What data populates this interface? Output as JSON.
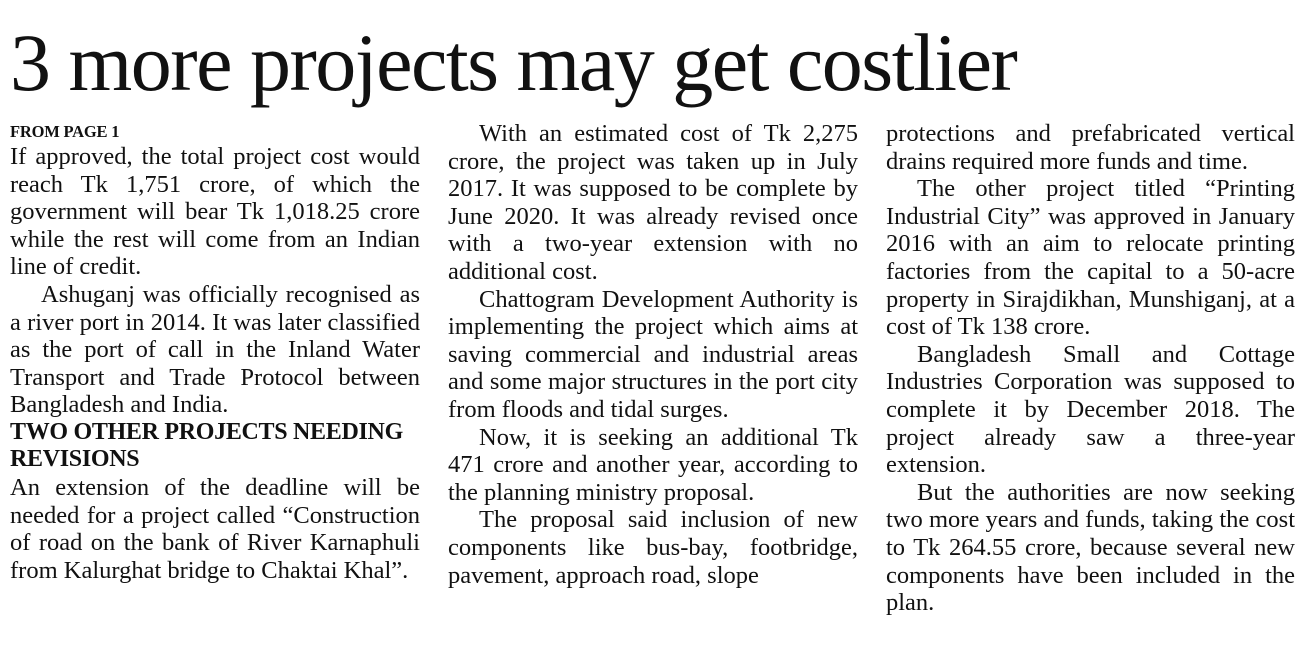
{
  "article": {
    "headline": "3 more projects may get costlier",
    "kicker": "FROM PAGE 1",
    "col1": {
      "p1": "If approved, the total project cost would reach Tk 1,751 crore, of which the government will bear Tk 1,018.25 crore while the rest will come from an Indian line of credit.",
      "p2": "Ashuganj was officially recognised as a river port in 2014. It was later classified as the port of call in the Inland Water Transport and Trade Protocol between Bangladesh and India.",
      "subhead": "TWO OTHER PROJECTS NEEDING REVISIONS",
      "p3": "An extension of the deadline will be needed for a project called “Construction of road on the bank of River Karnaphuli from Kalurghat bridge to Chaktai Khal”."
    },
    "col2": {
      "p1": "With an estimated cost of Tk 2,275 crore, the project was taken up in July 2017. It was supposed to be complete by June 2020. It was already revised once with a two-year extension with no additional cost.",
      "p2": "Chattogram Development Authority is implementing the project which aims at saving commercial and industrial areas and some major structures in the port city from floods and tidal surges.",
      "p3": "Now, it is seeking an additional Tk 471 crore and another year, according to the planning ministry proposal.",
      "p4": "The proposal said inclusion of new components like bus-bay, footbridge, pavement, approach road, slope"
    },
    "col3": {
      "p1": "protections and prefabricated vertical drains required more funds and time.",
      "p2": "The other project titled “Printing Industrial City” was approved in January 2016 with an aim to relocate printing factories from the capital to a 50-acre property in Sirajdikhan, Munshiganj, at a cost of Tk 138 crore.",
      "p3": "Bangladesh Small and Cottage Industries Corporation was supposed to complete it by December 2018. The project already saw a three-year extension.",
      "p4": "But the authorities are now seeking two more years and funds, taking the cost to Tk 264.55 crore, because several new components have been included in the plan."
    }
  }
}
